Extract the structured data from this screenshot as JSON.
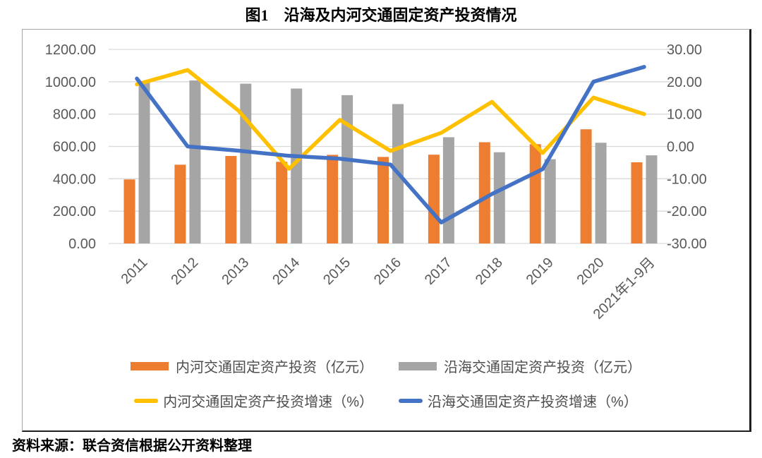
{
  "title": "图1　沿海及内河交通固定资产投资情况",
  "source": "资料来源：联合资信根据公开资料整理",
  "colors": {
    "inland_bar": "#ED7D31",
    "coastal_bar": "#A5A5A5",
    "inland_line": "#FFC000",
    "coastal_line": "#4472C4",
    "gridline": "#D9D9D9",
    "axis_text": "#595959",
    "legend_text": "#4d4d4d"
  },
  "chart_data": {
    "type": "bar+line combo, dual axis",
    "categories": [
      "2011",
      "2012",
      "2013",
      "2014",
      "2015",
      "2016",
      "2017",
      "2018",
      "2019",
      "2020",
      "2021年1-9月"
    ],
    "series": [
      {
        "name": "内河交通固定资产投资（亿元）",
        "type": "bar",
        "axis": "left",
        "color": "#ED7D31",
        "values": [
          396,
          487,
          541,
          505,
          548,
          535,
          549,
          626,
          614,
          706,
          502
        ]
      },
      {
        "name": "沿海交通固定资产投资（亿元）",
        "type": "bar",
        "axis": "left",
        "color": "#A5A5A5",
        "values": [
          1000,
          1008,
          988,
          958,
          917,
          862,
          657,
          564,
          521,
          623,
          545
        ]
      },
      {
        "name": "内河交通固定资产投资增速（%）",
        "type": "line",
        "axis": "right",
        "color": "#FFC000",
        "values": [
          19.2,
          23.6,
          11.1,
          -6.9,
          8.2,
          -1.4,
          4.2,
          13.8,
          -2.0,
          15.1,
          10.0
        ]
      },
      {
        "name": "沿海交通固定资产投资增速（%）",
        "type": "line",
        "axis": "right",
        "color": "#4472C4",
        "values": [
          21.0,
          0.0,
          -1.3,
          -2.9,
          -3.8,
          -5.6,
          -23.5,
          -14.7,
          -7.0,
          20.0,
          24.6
        ]
      }
    ],
    "left_axis": {
      "min": 0,
      "max": 1200,
      "step": 200,
      "tick_labels": [
        "0.00",
        "200.00",
        "400.00",
        "600.00",
        "800.00",
        "1000.00",
        "1200.00"
      ]
    },
    "right_axis": {
      "min": -30,
      "max": 30,
      "step": 10,
      "tick_labels": [
        "-30.00",
        "-20.00",
        "-10.00",
        "0.00",
        "10.00",
        "20.00",
        "30.00"
      ]
    },
    "grid": true,
    "vertical_grid": false,
    "legend_position": "bottom",
    "x_label_rotation": -45
  }
}
